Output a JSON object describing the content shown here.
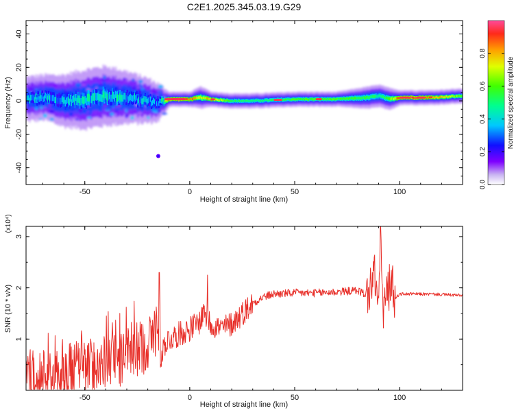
{
  "title": "C2E1.2025.345.03.19.G29",
  "chart_data": [
    {
      "type": "heatmap",
      "title": "C2E1.2025.345.03.19.G29",
      "xlabel": "Height of straight line (km)",
      "ylabel": "Frequency (Hz)",
      "xlim": [
        -78,
        130
      ],
      "ylim": [
        -50,
        48
      ],
      "xticks": [
        -50,
        0,
        50,
        100
      ],
      "yticks": [
        -40,
        -20,
        0,
        20,
        40
      ],
      "grid": false,
      "colorbar": {
        "label": "Normalized spectral amplitude",
        "range": [
          0.0,
          1.0
        ],
        "ticks": [
          0.0,
          0.2,
          0.4,
          0.6,
          0.8
        ],
        "tick_labels": [
          "0.0",
          "0.2",
          "0.4",
          "0.6",
          "0.8"
        ]
      },
      "ridge": {
        "description": "dominant frequency band vs height",
        "x": [
          -78,
          -70,
          -60,
          -50,
          -40,
          -30,
          -20,
          -15,
          -10,
          0,
          5,
          10,
          20,
          30,
          50,
          70,
          85,
          90,
          95,
          100,
          115,
          130
        ],
        "center_hz": [
          1,
          2,
          0,
          1,
          3,
          2,
          0,
          -1,
          1,
          1,
          2,
          1,
          0,
          0,
          1,
          1,
          2,
          3,
          1,
          2,
          2,
          3
        ],
        "amplitude": [
          0.35,
          0.4,
          0.38,
          0.42,
          0.45,
          0.4,
          0.35,
          0.3,
          0.95,
          0.9,
          0.7,
          0.85,
          0.55,
          0.5,
          0.6,
          0.6,
          0.55,
          0.5,
          0.6,
          0.95,
          0.9,
          0.6
        ],
        "spread_hz": [
          6,
          6,
          7,
          8,
          8,
          7,
          6,
          5,
          2,
          2,
          3,
          2,
          2,
          2,
          2,
          2,
          3,
          3,
          3,
          2,
          2,
          2
        ]
      },
      "outlier": {
        "x": -15,
        "y": -33
      }
    },
    {
      "type": "line",
      "xlabel": "Height of straight line (km)",
      "ylabel": "SNR (10 * v/v)",
      "y_multiplier": "(x10⁴)",
      "xlim": [
        -78,
        130
      ],
      "ylim": [
        0,
        3.2
      ],
      "xticks": [
        -50,
        0,
        50,
        100
      ],
      "yticks": [
        1,
        2,
        3
      ],
      "grid": false,
      "color": "#e8302a",
      "series": [
        {
          "name": "SNR",
          "x": [
            -78,
            -70,
            -60,
            -50,
            -40,
            -30,
            -25,
            -20,
            -17,
            -15,
            -14,
            -12,
            -10,
            -5,
            0,
            5,
            7,
            8,
            10,
            15,
            20,
            25,
            30,
            35,
            40,
            50,
            60,
            70,
            80,
            85,
            88,
            90,
            91,
            92,
            94,
            96,
            98,
            100,
            110,
            120,
            130
          ],
          "y": [
            0.25,
            0.3,
            0.35,
            0.45,
            0.55,
            0.65,
            0.8,
            0.9,
            1.1,
            1.4,
            0.6,
            0.9,
            1.0,
            1.1,
            1.2,
            1.35,
            1.6,
            1.4,
            1.3,
            1.2,
            1.3,
            1.5,
            1.7,
            1.82,
            1.88,
            1.9,
            1.9,
            1.92,
            1.95,
            1.85,
            2.3,
            1.6,
            3.2,
            1.5,
            1.9,
            2.1,
            1.8,
            1.88,
            1.88,
            1.87,
            1.85
          ]
        }
      ],
      "noise_amplitude": [
        {
          "x_from": -78,
          "x_to": -14,
          "amp": 0.55
        },
        {
          "x_from": -14,
          "x_to": 30,
          "amp": 0.25
        },
        {
          "x_from": 30,
          "x_to": 84,
          "amp": 0.08
        },
        {
          "x_from": 84,
          "x_to": 98,
          "amp": 0.45
        },
        {
          "x_from": 98,
          "x_to": 130,
          "amp": 0.03
        }
      ],
      "spikes": [
        {
          "x": -14.5,
          "y": 2.3
        },
        {
          "x": 8.5,
          "y": 2.25
        },
        {
          "x": 91,
          "y": 3.25
        },
        {
          "x": 96,
          "y": 2.35
        }
      ]
    }
  ]
}
